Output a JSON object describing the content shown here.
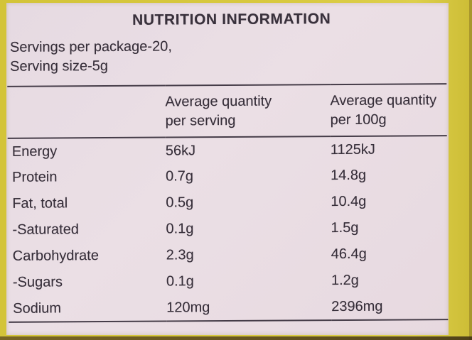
{
  "photo": {
    "title": "NUTRITION INFORMATION",
    "servings_line": "Servings per package-20,",
    "serving_size_line": "Serving size-5g",
    "table": {
      "col_serving_header": [
        "Average quantity",
        "per serving"
      ],
      "col_100g_header": [
        "Average quantity",
        "per 100g"
      ],
      "rows": [
        {
          "nutrient": "Energy",
          "per_serving": "56kJ",
          "per_100g": "1125kJ"
        },
        {
          "nutrient": "Protein",
          "per_serving": "0.7g",
          "per_100g": "14.8g"
        },
        {
          "nutrient": "Fat, total",
          "per_serving": "0.5g",
          "per_100g": "10.4g"
        },
        {
          "nutrient": "-Saturated",
          "per_serving": "0.1g",
          "per_100g": "1.5g"
        },
        {
          "nutrient": "Carbohydrate",
          "per_serving": "2.3g",
          "per_100g": "46.4g"
        },
        {
          "nutrient": "-Sugars",
          "per_serving": "0.1g",
          "per_100g": "1.2g"
        },
        {
          "nutrient": "Sodium",
          "per_serving": "120mg",
          "per_100g": "2396mg"
        }
      ]
    },
    "colors": {
      "package_yellow": "#d8c93f",
      "label_background": "#e9dde4",
      "text": "#362e39",
      "rule_lines": "#453c48"
    }
  }
}
